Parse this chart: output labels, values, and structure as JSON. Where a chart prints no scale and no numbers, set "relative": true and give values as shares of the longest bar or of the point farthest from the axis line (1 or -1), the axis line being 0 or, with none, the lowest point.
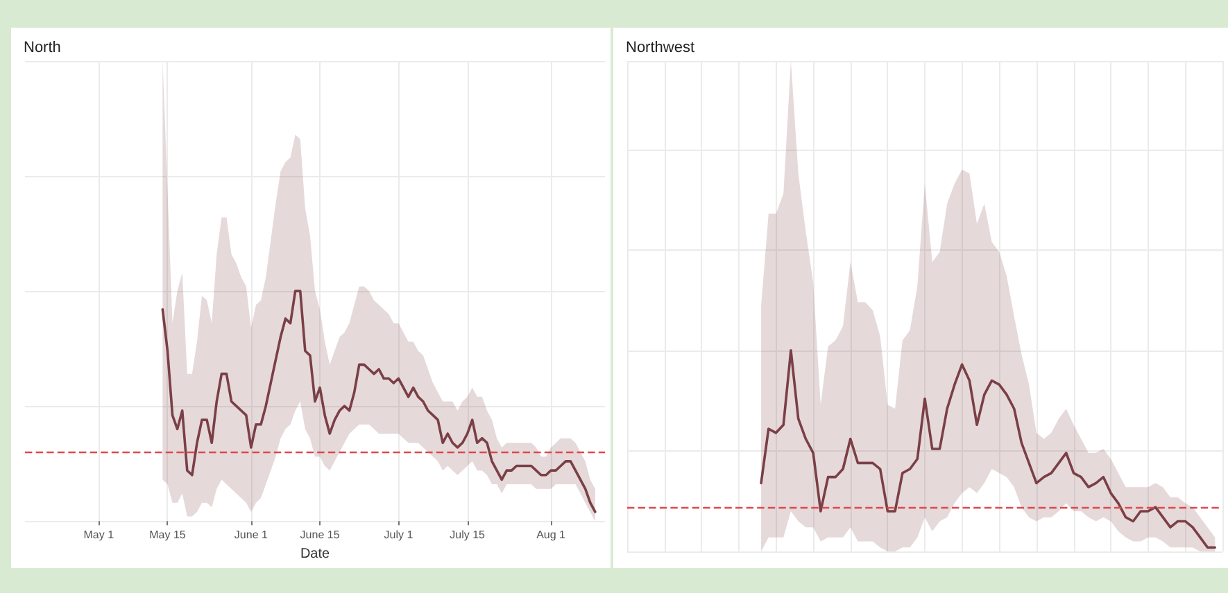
{
  "chart_data": [
    {
      "type": "line",
      "title": "North",
      "xlabel": "Date",
      "relative": true,
      "grid": true,
      "marker": "none",
      "line_style": "solid",
      "tick_labels": "x",
      "xlim": [
        "--04-16",
        "--08-12"
      ],
      "xticks": [
        {
          "value": "--05-01",
          "label": "May 1"
        },
        {
          "value": "--05-15",
          "label": "May 15"
        },
        {
          "value": "--06-01",
          "label": "June 1"
        },
        {
          "value": "--06-15",
          "label": "June 15"
        },
        {
          "value": "--07-01",
          "label": "July 1"
        },
        {
          "value": "--07-15",
          "label": "July 15"
        },
        {
          "value": "--08-01",
          "label": "Aug 1"
        }
      ],
      "x": [
        "--05-14",
        "--05-15",
        "--05-16",
        "--05-17",
        "--05-18",
        "--05-19",
        "--05-20",
        "--05-21",
        "--05-22",
        "--05-23",
        "--05-24",
        "--05-25",
        "--05-26",
        "--05-27",
        "--05-28",
        "--05-29",
        "--05-30",
        "--05-31",
        "--06-01",
        "--06-02",
        "--06-03",
        "--06-04",
        "--06-05",
        "--06-06",
        "--06-07",
        "--06-08",
        "--06-09",
        "--06-10",
        "--06-11",
        "--06-12",
        "--06-13",
        "--06-14",
        "--06-15",
        "--06-16",
        "--06-17",
        "--06-18",
        "--06-19",
        "--06-20",
        "--06-21",
        "--06-22",
        "--06-23",
        "--06-24",
        "--06-25",
        "--06-26",
        "--06-27",
        "--06-28",
        "--06-29",
        "--06-30",
        "--07-01",
        "--07-02",
        "--07-03",
        "--07-04",
        "--07-05",
        "--07-06",
        "--07-07",
        "--07-08",
        "--07-09",
        "--07-10",
        "--07-11",
        "--07-12",
        "--07-13",
        "--07-14",
        "--07-15",
        "--07-16",
        "--07-17",
        "--07-18",
        "--07-19",
        "--07-20",
        "--07-21",
        "--07-22",
        "--07-23",
        "--07-24",
        "--07-25",
        "--07-26",
        "--07-27",
        "--07-28",
        "--07-29",
        "--07-30",
        "--07-31",
        "--08-01",
        "--08-02",
        "--08-03",
        "--08-04",
        "--08-05",
        "--08-06",
        "--08-07",
        "--08-08",
        "--08-09",
        "--08-10"
      ],
      "series": [
        {
          "color": "#7b3f46",
          "values": [
            0.92,
            0.74,
            0.46,
            0.4,
            0.48,
            0.22,
            0.2,
            0.34,
            0.44,
            0.44,
            0.34,
            0.52,
            0.64,
            0.64,
            0.52,
            0.5,
            0.48,
            0.46,
            0.32,
            0.42,
            0.42,
            0.5,
            0.6,
            0.7,
            0.8,
            0.88,
            0.86,
            1.0,
            1.0,
            0.74,
            0.72,
            0.52,
            0.58,
            0.46,
            0.38,
            0.44,
            0.48,
            0.5,
            0.48,
            0.56,
            0.68,
            0.68,
            0.66,
            0.64,
            0.66,
            0.62,
            0.62,
            0.6,
            0.62,
            0.58,
            0.54,
            0.58,
            0.54,
            0.52,
            0.48,
            0.46,
            0.44,
            0.34,
            0.38,
            0.34,
            0.32,
            0.34,
            0.38,
            0.44,
            0.34,
            0.36,
            0.34,
            0.26,
            0.22,
            0.18,
            0.22,
            0.22,
            0.24,
            0.24,
            0.24,
            0.24,
            0.22,
            0.2,
            0.2,
            0.22,
            0.22,
            0.24,
            0.26,
            0.26,
            0.22,
            0.18,
            0.14,
            0.08,
            0.04
          ],
          "upper": [
            2.0,
            1.44,
            0.86,
            1.0,
            1.08,
            0.64,
            0.64,
            0.78,
            0.98,
            0.96,
            0.86,
            1.16,
            1.32,
            1.32,
            1.16,
            1.12,
            1.06,
            1.02,
            0.84,
            0.94,
            0.96,
            1.06,
            1.22,
            1.38,
            1.52,
            1.56,
            1.58,
            1.68,
            1.66,
            1.36,
            1.24,
            1.0,
            0.92,
            0.78,
            0.68,
            0.74,
            0.8,
            0.82,
            0.86,
            0.94,
            1.02,
            1.02,
            1.0,
            0.96,
            0.94,
            0.92,
            0.9,
            0.86,
            0.86,
            0.82,
            0.78,
            0.78,
            0.74,
            0.72,
            0.66,
            0.6,
            0.56,
            0.52,
            0.52,
            0.52,
            0.48,
            0.52,
            0.54,
            0.58,
            0.54,
            0.54,
            0.48,
            0.44,
            0.36,
            0.32,
            0.34,
            0.34,
            0.34,
            0.34,
            0.34,
            0.34,
            0.32,
            0.28,
            0.28,
            0.32,
            0.34,
            0.36,
            0.36,
            0.36,
            0.34,
            0.3,
            0.26,
            0.18,
            0.14
          ],
          "lower": [
            0.18,
            0.16,
            0.08,
            0.08,
            0.12,
            0.02,
            0.02,
            0.04,
            0.08,
            0.08,
            0.06,
            0.14,
            0.18,
            0.16,
            0.14,
            0.12,
            0.1,
            0.08,
            0.04,
            0.08,
            0.1,
            0.16,
            0.22,
            0.28,
            0.36,
            0.4,
            0.42,
            0.48,
            0.52,
            0.4,
            0.36,
            0.28,
            0.28,
            0.24,
            0.22,
            0.26,
            0.3,
            0.34,
            0.38,
            0.4,
            0.42,
            0.42,
            0.42,
            0.4,
            0.38,
            0.38,
            0.38,
            0.38,
            0.38,
            0.36,
            0.34,
            0.34,
            0.34,
            0.32,
            0.3,
            0.28,
            0.26,
            0.22,
            0.24,
            0.22,
            0.2,
            0.22,
            0.24,
            0.26,
            0.22,
            0.22,
            0.2,
            0.16,
            0.16,
            0.12,
            0.16,
            0.16,
            0.16,
            0.16,
            0.16,
            0.16,
            0.14,
            0.14,
            0.14,
            0.14,
            0.16,
            0.16,
            0.16,
            0.16,
            0.16,
            0.12,
            0.08,
            0.04,
            0.0
          ]
        }
      ],
      "ref_lines": [
        {
          "axis": "y",
          "value": 0.3,
          "color": "#e0474c",
          "line_style": "dashed"
        }
      ]
    },
    {
      "type": "line",
      "title": "Northwest",
      "relative": true,
      "grid": true,
      "marker": "none",
      "line_style": "solid",
      "tick_labels": false,
      "categories": [
        null,
        null,
        null,
        null,
        null,
        null,
        null,
        null,
        null,
        null,
        null,
        null,
        null,
        null,
        null,
        null,
        null,
        null,
        null,
        null,
        null,
        null,
        null,
        null,
        null,
        null,
        null,
        null,
        null,
        null,
        null,
        null,
        null,
        null,
        null,
        null,
        null,
        null,
        null,
        null,
        null,
        null,
        null,
        null,
        null,
        null,
        null,
        null,
        null,
        null,
        null,
        null,
        null,
        null,
        null,
        null,
        null,
        null,
        null,
        null,
        null,
        null,
        null,
        null,
        null,
        null,
        null,
        null,
        null,
        null,
        null,
        null,
        null,
        null,
        null,
        null,
        null,
        null,
        null,
        null,
        null
      ],
      "series": [
        {
          "color": "#7b3f46",
          "values": [
            null,
            null,
            null,
            null,
            null,
            null,
            null,
            null,
            null,
            null,
            null,
            null,
            null,
            null,
            null,
            null,
            null,
            null,
            0.34,
            0.61,
            0.59,
            0.63,
            1.0,
            0.66,
            0.56,
            0.49,
            0.2,
            0.37,
            0.37,
            0.41,
            0.56,
            0.44,
            0.44,
            0.44,
            0.41,
            0.2,
            0.2,
            0.39,
            0.41,
            0.46,
            0.76,
            0.51,
            0.51,
            0.71,
            0.83,
            0.93,
            0.85,
            0.63,
            0.78,
            0.85,
            0.83,
            0.78,
            0.71,
            0.54,
            0.44,
            0.34,
            0.37,
            0.39,
            0.44,
            0.49,
            0.39,
            0.37,
            0.32,
            0.34,
            0.37,
            0.29,
            0.24,
            0.17,
            0.15,
            0.2,
            0.2,
            0.22,
            0.17,
            0.12,
            0.15,
            0.15,
            0.12,
            0.07,
            0.02,
            0.02,
            null
          ],
          "upper": [
            null,
            null,
            null,
            null,
            null,
            null,
            null,
            null,
            null,
            null,
            null,
            null,
            null,
            null,
            null,
            null,
            null,
            null,
            1.22,
            1.68,
            1.68,
            1.78,
            2.44,
            1.88,
            1.59,
            1.34,
            0.73,
            1.02,
            1.05,
            1.12,
            1.44,
            1.24,
            1.24,
            1.2,
            1.07,
            0.73,
            0.71,
            1.05,
            1.1,
            1.32,
            1.83,
            1.44,
            1.49,
            1.73,
            1.83,
            1.9,
            1.88,
            1.63,
            1.73,
            1.54,
            1.49,
            1.37,
            1.17,
            0.98,
            0.83,
            0.59,
            0.56,
            0.59,
            0.66,
            0.71,
            0.63,
            0.56,
            0.49,
            0.49,
            0.51,
            0.46,
            0.39,
            0.32,
            0.32,
            0.32,
            0.32,
            0.34,
            0.32,
            0.27,
            0.27,
            0.24,
            0.22,
            0.17,
            0.12,
            0.07,
            null
          ],
          "lower": [
            null,
            null,
            null,
            null,
            null,
            null,
            null,
            null,
            null,
            null,
            null,
            null,
            null,
            null,
            null,
            null,
            null,
            null,
            0.0,
            0.07,
            0.07,
            0.07,
            0.2,
            0.15,
            0.12,
            0.12,
            0.05,
            0.07,
            0.07,
            0.07,
            0.12,
            0.05,
            0.05,
            0.05,
            0.02,
            0.0,
            0.0,
            0.02,
            0.02,
            0.07,
            0.17,
            0.1,
            0.15,
            0.17,
            0.24,
            0.29,
            0.32,
            0.29,
            0.34,
            0.41,
            0.39,
            0.37,
            0.32,
            0.22,
            0.17,
            0.15,
            0.17,
            0.17,
            0.2,
            0.24,
            0.2,
            0.2,
            0.17,
            0.15,
            0.17,
            0.15,
            0.1,
            0.07,
            0.05,
            0.05,
            0.07,
            0.07,
            0.05,
            0.02,
            0.02,
            0.02,
            0.02,
            0.0,
            0.0,
            0.0,
            null
          ]
        }
      ],
      "ref_lines": [
        {
          "axis": "y",
          "value": 0.22,
          "color": "#e0474c",
          "line_style": "dashed"
        }
      ]
    }
  ]
}
